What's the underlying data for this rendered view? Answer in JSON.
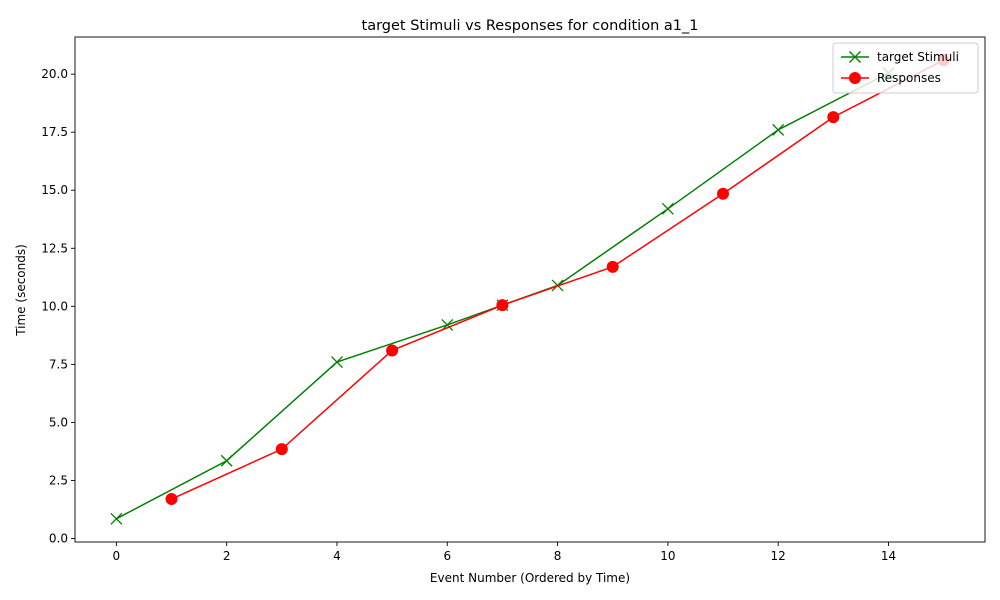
{
  "chart_data": {
    "type": "line",
    "title": "target Stimuli vs Responses for condition a1_1",
    "xlabel": "Event Number (Ordered by Time)",
    "ylabel": "Time (seconds)",
    "xlim": [
      -0.75,
      15.75
    ],
    "ylim": [
      -0.15,
      21.6
    ],
    "x_ticks": [
      0,
      2,
      4,
      6,
      8,
      10,
      12,
      14
    ],
    "y_ticks": [
      0.0,
      2.5,
      5.0,
      7.5,
      10.0,
      12.5,
      15.0,
      17.5,
      20.0
    ],
    "grid": false,
    "legend_position": "top-right",
    "series": [
      {
        "name": "target Stimuli",
        "color": "#008000",
        "marker": "x",
        "points": [
          {
            "x": 0,
            "y": 0.85
          },
          {
            "x": 2,
            "y": 3.35
          },
          {
            "x": 4,
            "y": 7.6
          },
          {
            "x": 6,
            "y": 9.2
          },
          {
            "x": 7,
            "y": 10.05
          },
          {
            "x": 8,
            "y": 10.9
          },
          {
            "x": 10,
            "y": 14.2
          },
          {
            "x": 12,
            "y": 17.6
          },
          {
            "x": 14,
            "y": 20.05
          }
        ]
      },
      {
        "name": "Responses",
        "color": "#ff0000",
        "marker": "circle",
        "points": [
          {
            "x": 1,
            "y": 1.7
          },
          {
            "x": 3,
            "y": 3.85
          },
          {
            "x": 5,
            "y": 8.1
          },
          {
            "x": 7,
            "y": 10.05
          },
          {
            "x": 9,
            "y": 11.7
          },
          {
            "x": 11,
            "y": 14.85
          },
          {
            "x": 13,
            "y": 18.15
          },
          {
            "x": 15,
            "y": 20.6
          }
        ]
      }
    ]
  }
}
